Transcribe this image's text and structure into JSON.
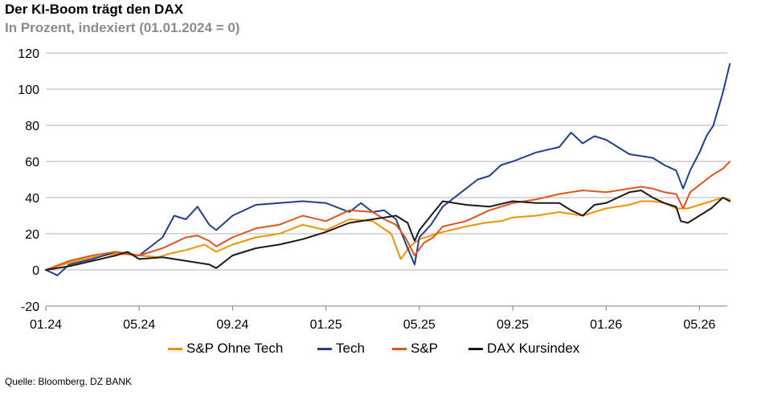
{
  "header": {
    "title": "Der KI-Boom trägt den DAX",
    "subtitle": "In Prozent, indexiert (01.01.2024 = 0)"
  },
  "footer": {
    "source": "Quelle: Bloomberg, DZ BANK"
  },
  "colors": {
    "sp_ohne_tech": "#f39200",
    "tech": "#1f3f8f",
    "sp": "#e2541b",
    "dax": "#1a1a1a",
    "grid": "#b3b3b3",
    "axis": "#7f7f7f"
  },
  "chart_data": {
    "type": "line",
    "title": "Der KI-Boom trägt den DAX",
    "subtitle": "In Prozent, indexiert (01.01.2024 = 0)",
    "xlabel": "",
    "ylabel": "",
    "ylim": [
      -20,
      120
    ],
    "yticks": [
      -20,
      0,
      20,
      40,
      60,
      80,
      100,
      120
    ],
    "xtick_labels": [
      "01.24",
      "05.24",
      "09.24",
      "01.25",
      "05.25",
      "09.25",
      "01.26",
      "05.26"
    ],
    "x_range_months": [
      0,
      29.3
    ],
    "grid": true,
    "legend_position": "bottom",
    "series": [
      {
        "name": "S&P Ohne Tech",
        "color": "#f39200",
        "x": [
          0,
          1,
          2,
          3,
          4,
          4.8,
          5.3,
          6,
          6.8,
          7.3,
          8,
          9,
          10,
          11,
          12,
          13,
          14,
          14.8,
          15.2,
          15.6,
          16,
          17,
          18,
          18.8,
          19.5,
          20,
          21,
          22,
          23,
          24,
          25,
          25.5,
          26,
          26.5,
          27,
          27.5,
          28,
          28.5,
          29,
          29.3
        ],
        "values": [
          0,
          4,
          7,
          9,
          8,
          7,
          9,
          11,
          14,
          10,
          14,
          18,
          20,
          25,
          22,
          28,
          27,
          20,
          6,
          13,
          17,
          21,
          24,
          26,
          27,
          29,
          30,
          32,
          30,
          34,
          36,
          38,
          38,
          37,
          34,
          34,
          36,
          38,
          40,
          39
        ]
      },
      {
        "name": "Tech",
        "color": "#1f3f8f",
        "x": [
          0,
          0.5,
          1,
          2,
          3,
          4,
          5,
          5.5,
          6,
          6.5,
          7,
          7.3,
          8,
          9,
          10,
          11,
          12,
          13,
          13.5,
          14,
          14.5,
          15,
          15.5,
          15.8,
          16,
          16.5,
          17,
          17.5,
          18,
          18.5,
          19,
          19.5,
          20,
          21,
          22,
          22.5,
          23,
          23.5,
          24,
          25,
          26,
          26.5,
          27,
          27.3,
          27.6,
          28,
          28.3,
          28.6,
          29,
          29.3
        ],
        "values": [
          0,
          -3,
          3,
          6,
          10,
          8,
          18,
          30,
          28,
          35,
          25,
          22,
          30,
          36,
          37,
          38,
          37,
          32,
          37,
          32,
          33,
          28,
          12,
          3,
          18,
          25,
          35,
          40,
          45,
          50,
          52,
          58,
          60,
          65,
          68,
          76,
          70,
          74,
          72,
          64,
          62,
          58,
          55,
          45,
          55,
          65,
          74,
          80,
          98,
          114
        ]
      },
      {
        "name": "S&P",
        "color": "#e2541b",
        "x": [
          0,
          1,
          2,
          3,
          4,
          5,
          5.5,
          6,
          6.5,
          7,
          7.3,
          8,
          9,
          10,
          11,
          12,
          13,
          14,
          14.5,
          15,
          15.4,
          15.8,
          16.2,
          16.6,
          17,
          18,
          19,
          20,
          21,
          22,
          23,
          24,
          25,
          25.5,
          26,
          26.5,
          27,
          27.3,
          27.6,
          28,
          28.5,
          29,
          29.3
        ],
        "values": [
          0,
          5,
          8,
          10,
          8,
          12,
          15,
          18,
          19,
          16,
          13,
          18,
          23,
          25,
          30,
          27,
          33,
          32,
          28,
          25,
          18,
          8,
          15,
          18,
          24,
          27,
          33,
          37,
          39,
          42,
          44,
          43,
          45,
          46,
          45,
          43,
          42,
          34,
          43,
          47,
          52,
          56,
          60
        ]
      },
      {
        "name": "DAX Kursindex",
        "color": "#1a1a1a",
        "x": [
          0,
          1,
          2,
          3,
          3.5,
          4,
          5,
          6,
          7,
          7.3,
          8,
          9,
          10,
          11,
          12,
          13,
          14,
          15,
          15.5,
          15.8,
          16,
          16.5,
          17,
          18,
          19,
          20,
          21,
          22,
          22.5,
          23,
          23.5,
          24,
          24.5,
          25,
          25.5,
          26,
          26.5,
          27,
          27.2,
          27.5,
          28,
          28.5,
          29,
          29.3
        ],
        "values": [
          0,
          2,
          5,
          8,
          10,
          6,
          7,
          5,
          3,
          1,
          8,
          12,
          14,
          17,
          21,
          26,
          28,
          30,
          26,
          16,
          22,
          30,
          38,
          36,
          35,
          38,
          37,
          37,
          33,
          30,
          36,
          37,
          40,
          43,
          44,
          40,
          37,
          35,
          27,
          26,
          30,
          34,
          40,
          38
        ]
      }
    ]
  }
}
